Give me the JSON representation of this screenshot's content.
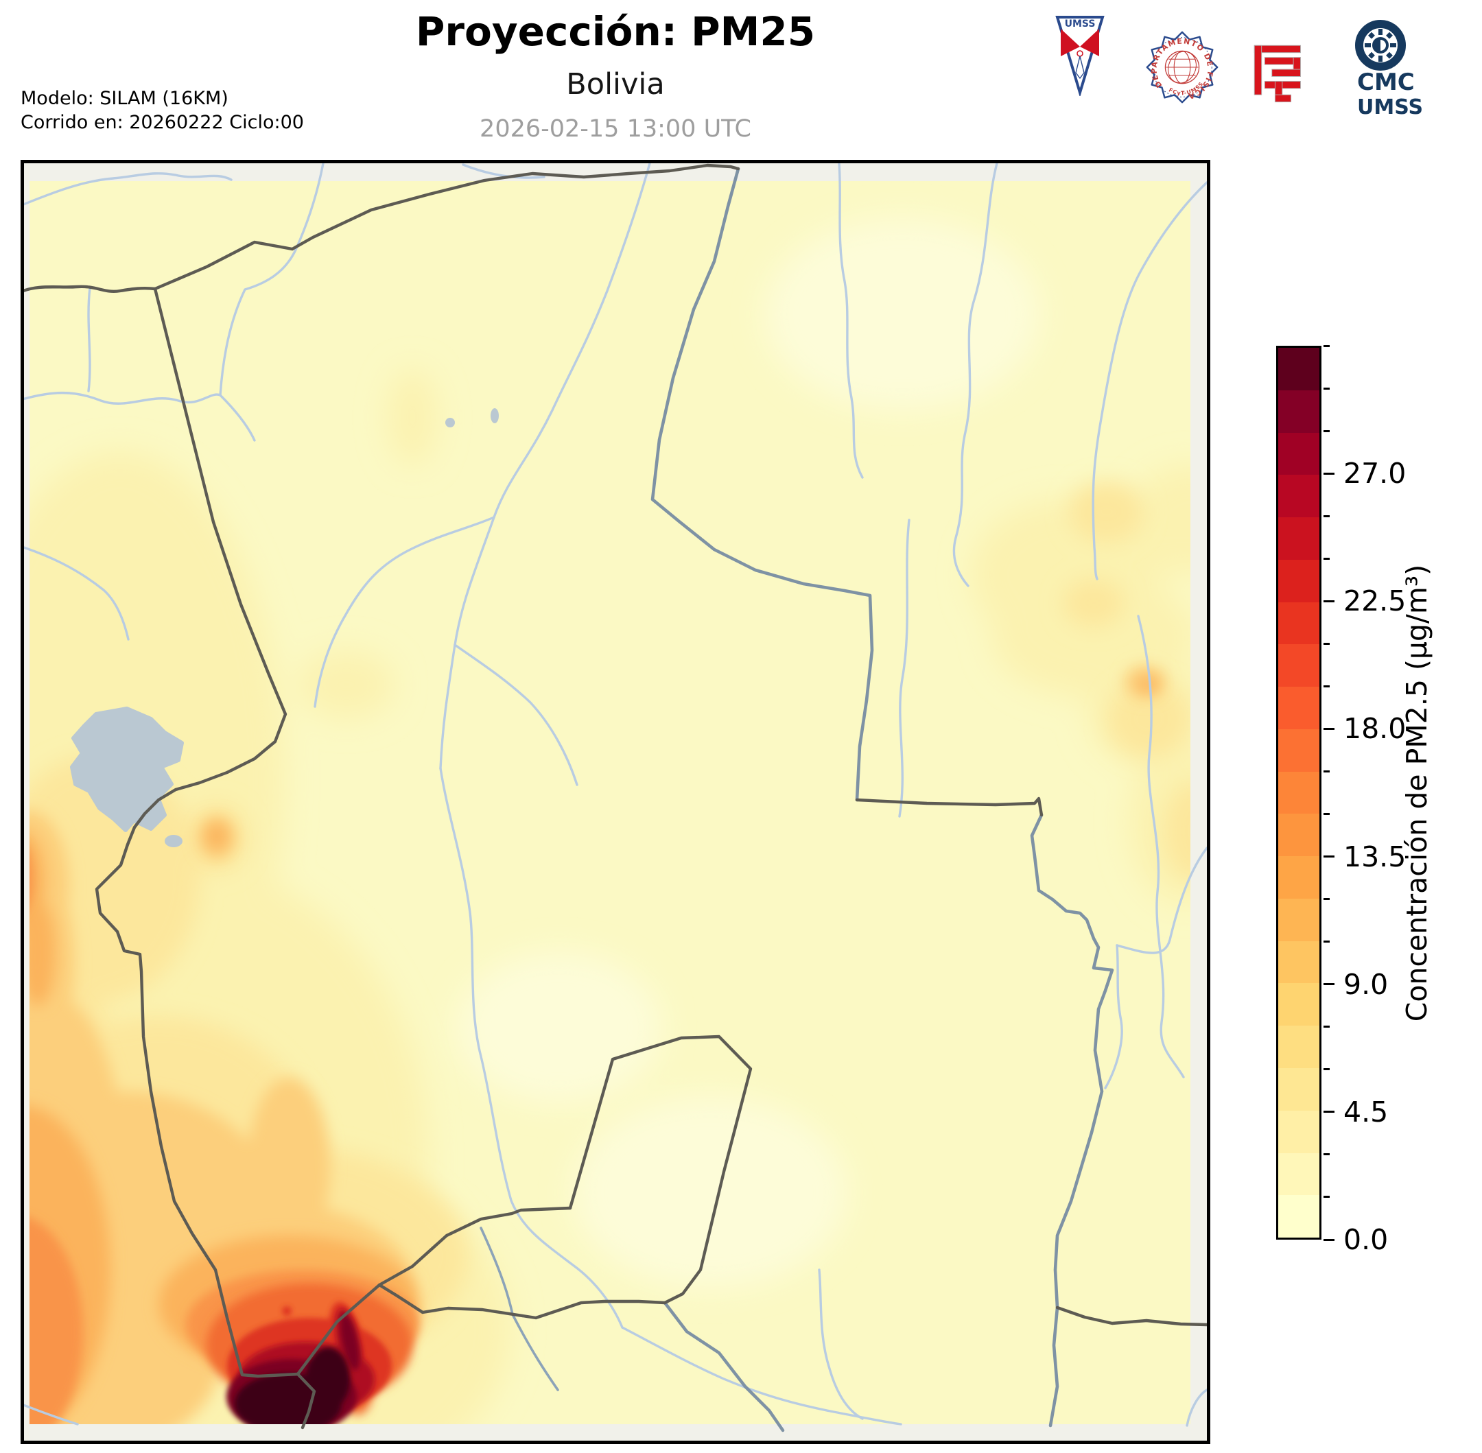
{
  "header": {
    "title": "Proyección: PM25",
    "subtitle": "Bolivia",
    "timestamp": "2026-02-15 13:00 UTC",
    "model_line1": "Modelo: SILAM (16KM)",
    "model_line2": "Corrido en: 20260222 Ciclo:00",
    "logos": {
      "umss_pennant_label": "UMSS",
      "fisica_seal_text": "DEPARTAMENTO DE FÍSICA",
      "fisica_seal_subtext": "FCyT-UMSS",
      "cmc_line1": "CMC",
      "cmc_line2": "UMSS"
    }
  },
  "colorbar": {
    "label": "Concentración de PM2.5 (µg/m³)",
    "units": "µg/m³",
    "min": 0,
    "max": 31.5,
    "step": 1.5,
    "tick_values": [
      0,
      4.5,
      9,
      13.5,
      18,
      22.5,
      27
    ],
    "tick_labels": [
      "0.0",
      "4.5",
      "9.0",
      "13.5",
      "18.0",
      "22.5",
      "27.0"
    ],
    "colors_bottom_to_top": [
      "#ffffcc",
      "#fff7b9",
      "#ffefa6",
      "#fee793",
      "#fede81",
      "#fed470",
      "#fec561",
      "#feb553",
      "#fea546",
      "#fd953e",
      "#fd8538",
      "#fc7133",
      "#fa5c2d",
      "#f34827",
      "#e93420",
      "#dc211d",
      "#cb121f",
      "#b80723",
      "#a00125",
      "#840026",
      "#5e001d"
    ]
  },
  "map": {
    "base_fill_color": "#fbf9c4",
    "outside_domain_color": "#f1f1ea",
    "border_color": "#5d5b53",
    "river_color": "#b8cce2",
    "border_river_color": "#7e92a4",
    "lake_color": "#bac8d2",
    "hotspot_max_color": "#3d0213"
  },
  "chart_data": {
    "type": "heatmap",
    "title": "Proyección: PM25",
    "region": "Bolivia",
    "timestamp": "2026-02-15 13:00 UTC",
    "colorbar_label": "Concentración de PM2.5 (µg/m³)",
    "units": "µg/m³",
    "scale_ticks": [
      0,
      4.5,
      9,
      13.5,
      18,
      22.5,
      27
    ],
    "scale_range": [
      0,
      31.5
    ],
    "background_level_ug_m3": "0 - 4.5",
    "hotspots": [
      {
        "name": "southwest-border-maximum",
        "location": "bottom left of domain (SW Bolivia / Chile-Argentina border)",
        "approx_value_ug_m3": "29 - 31.5+"
      },
      {
        "name": "red-plume-northeast-of-maximum",
        "location": "just NE of the maximum",
        "approx_value_ug_m3": "18 - 27"
      },
      {
        "name": "western-andes-band",
        "location": "along western (left) edge",
        "approx_value_ug_m3": "9 - 15"
      },
      {
        "name": "la-paz-altiplano-spot",
        "location": "SE of Lake Titicaca",
        "approx_value_ug_m3": "9 - 13"
      },
      {
        "name": "eastern-border-spot",
        "location": "east, near Brazil border",
        "approx_value_ug_m3": "6 - 9"
      }
    ]
  }
}
